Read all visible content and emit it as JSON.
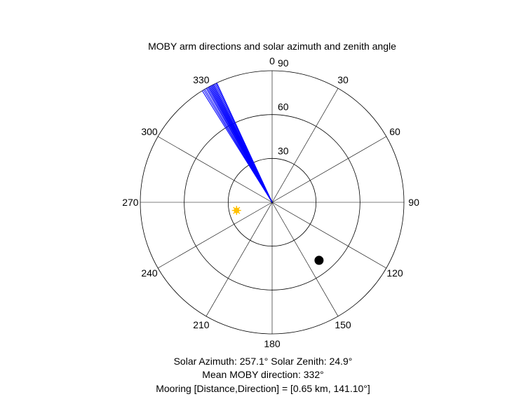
{
  "chart_data": {
    "type": "polar",
    "title": "MOBY arm directions and solar azimuth and zenith angle",
    "theta_direction": "clockwise",
    "theta_zero": "top",
    "theta_ticks": [
      0,
      30,
      60,
      90,
      120,
      150,
      180,
      210,
      240,
      270,
      300,
      330
    ],
    "theta_tick_labels": [
      "0",
      "30",
      "60",
      "90",
      "120",
      "150",
      "180",
      "210",
      "240",
      "270",
      "300",
      "330"
    ],
    "r_ticks": [
      30,
      60,
      90
    ],
    "r_tick_labels": [
      "30",
      "60",
      "90"
    ],
    "rlim": [
      0,
      90
    ],
    "grid": true,
    "series": [
      {
        "kind": "arm-lines",
        "color": "#0000ff",
        "r": 90,
        "theta_deg": [
          328.0,
          328.7,
          329.3,
          330.0,
          330.5,
          331.0,
          331.4,
          331.8,
          332.2,
          332.6,
          333.0,
          333.4,
          333.8,
          334.3,
          334.8,
          335.2
        ]
      },
      {
        "kind": "sun-marker",
        "color": "#ffc000",
        "azimuth_deg": 257.1,
        "zenith_deg": 24.9
      },
      {
        "kind": "mooring-marker",
        "color": "#000000",
        "direction_deg": 141.1,
        "r": 51
      }
    ],
    "annotations": {
      "line1": "Solar Azimuth: 257.1°    Solar Zenith: 24.9°",
      "line2": "Mean MOBY direction: 332°",
      "line3": "Mooring [Distance,Direction] = [0.65 km, 141.10°]"
    }
  }
}
